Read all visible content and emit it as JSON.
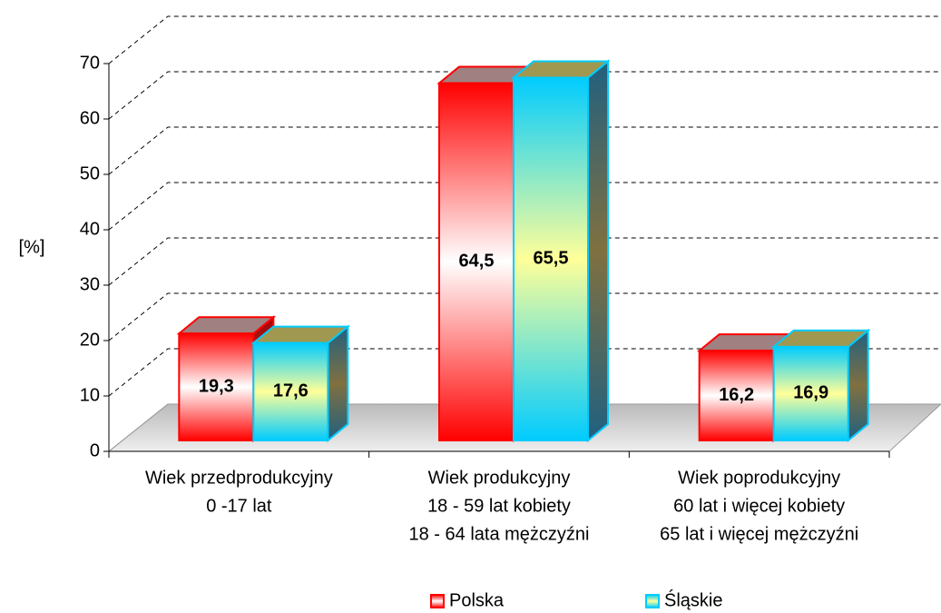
{
  "chart_data": {
    "type": "bar3d",
    "y_label": "[%]",
    "categories": [
      [
        "Wiek przedprodukcyjny",
        "0 -17 lat"
      ],
      [
        "Wiek produkcyjny",
        "18 - 59 lat kobiety",
        "18 - 64 lata mężczyźni"
      ],
      [
        "Wiek poprodukcyjny",
        "60 lat i więcej kobiety",
        "65 lat i więcej mężczyźni"
      ]
    ],
    "series": [
      {
        "name": "Polska",
        "color": "#ff0000",
        "values": [
          19.3,
          64.5,
          16.2
        ],
        "value_labels": [
          "19,3",
          "64,5",
          "16,2"
        ]
      },
      {
        "name": "Śląskie",
        "color": "#00ccff",
        "values": [
          17.6,
          65.5,
          16.9
        ],
        "value_labels": [
          "17,6",
          "65,5",
          "16,9"
        ]
      }
    ],
    "ylim": [
      0,
      70
    ],
    "yticks": [
      0,
      10,
      20,
      30,
      40,
      50,
      60,
      70
    ],
    "grid": true,
    "legend": "bottom"
  }
}
